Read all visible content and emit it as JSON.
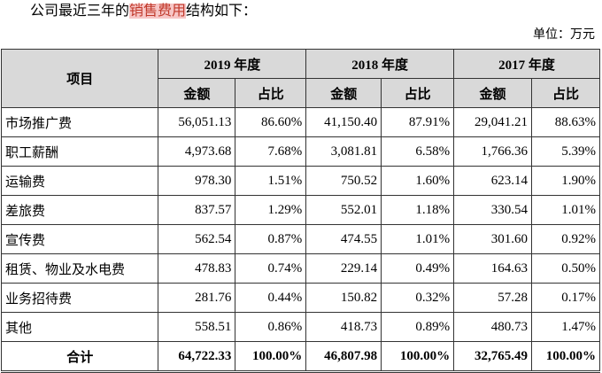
{
  "intro": {
    "before": "公司最近三年的",
    "highlight": "销售费用",
    "after": "结构如下："
  },
  "unit": "单位：万元",
  "table": {
    "item_header": "项目",
    "years": [
      "2019 年度",
      "2018 年度",
      "2017 年度"
    ],
    "subheaders": [
      "金额",
      "占比",
      "金额",
      "占比",
      "金额",
      "占比"
    ],
    "rows": [
      [
        "市场推广费",
        "56,051.13",
        "86.60%",
        "41,150.40",
        "87.91%",
        "29,041.21",
        "88.63%"
      ],
      [
        "职工薪酬",
        "4,973.68",
        "7.68%",
        "3,081.81",
        "6.58%",
        "1,766.36",
        "5.39%"
      ],
      [
        "运输费",
        "978.30",
        "1.51%",
        "750.52",
        "1.60%",
        "623.14",
        "1.90%"
      ],
      [
        "差旅费",
        "837.57",
        "1.29%",
        "552.01",
        "1.18%",
        "330.54",
        "1.01%"
      ],
      [
        "宣传费",
        "562.54",
        "0.87%",
        "474.55",
        "1.01%",
        "301.60",
        "0.92%"
      ],
      [
        "租赁、物业及水电费",
        "478.83",
        "0.74%",
        "229.14",
        "0.49%",
        "164.63",
        "0.50%"
      ],
      [
        "业务招待费",
        "281.76",
        "0.44%",
        "150.82",
        "0.32%",
        "57.28",
        "0.17%"
      ],
      [
        "其他",
        "558.51",
        "0.86%",
        "418.73",
        "0.89%",
        "480.73",
        "1.47%"
      ]
    ],
    "total": [
      "合计",
      "64,722.33",
      "100.00%",
      "46,807.98",
      "100.00%",
      "32,765.49",
      "100.00%"
    ]
  }
}
